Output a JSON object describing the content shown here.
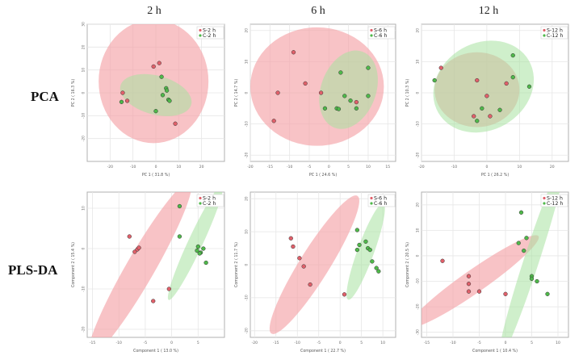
{
  "figure": {
    "col_titles": [
      "2 h",
      "6 h",
      "12 h"
    ],
    "row_labels": [
      "PCA",
      "PLS-DA"
    ]
  },
  "colors": {
    "s_ellipse": "#f4a3a8",
    "c_ellipse": "#a8e2a0",
    "s_point": "#e0606a",
    "c_point": "#4fb84a",
    "frame": "#b0b0b0",
    "grid": "#e6e6e6"
  },
  "chart_data": [
    {
      "type": "scatter",
      "method": "PCA",
      "time": "2 h",
      "xlabel": "PC 1 ( 31.8 %)",
      "ylabel": "PC 2 ( 16.3 %)",
      "xlim": [
        -30,
        30
      ],
      "ylim": [
        -30,
        30
      ],
      "xticks": [
        -20,
        -10,
        0,
        10,
        20
      ],
      "yticks": [
        -20,
        -10,
        0,
        10,
        20,
        30
      ],
      "legend": [
        "S-2 h",
        "C-2 h"
      ],
      "series": [
        {
          "name": "S-2 h",
          "points": [
            [
              -14.5,
              0
            ],
            [
              -12.5,
              -3.5
            ],
            [
              -1,
              11.5
            ],
            [
              1.5,
              13
            ],
            [
              8.5,
              -13.5
            ]
          ]
        },
        {
          "name": "C-2 h",
          "points": [
            [
              -15,
              -4
            ],
            [
              0,
              -8
            ],
            [
              2.5,
              7
            ],
            [
              3,
              -1
            ],
            [
              4.5,
              2
            ],
            [
              5.5,
              -3
            ],
            [
              6,
              -3.5
            ],
            [
              4.8,
              1
            ]
          ]
        }
      ],
      "ellipses": [
        {
          "series": "S-2 h",
          "cx": -1,
          "cy": 5,
          "rx": 24,
          "ry": 27,
          "angle": 0
        },
        {
          "series": "C-2 h",
          "cx": 0,
          "cy": -1,
          "rx": 16,
          "ry": 8.5,
          "angle": 15
        }
      ]
    },
    {
      "type": "scatter",
      "method": "PCA",
      "time": "6 h",
      "xlabel": "PC 1 ( 24.6 %)",
      "ylabel": "PC 2 ( 14.7 %)",
      "xlim": [
        -20,
        17
      ],
      "ylim": [
        -22,
        22
      ],
      "xticks": [
        -20,
        -15,
        -10,
        -5,
        0,
        5,
        10,
        15
      ],
      "yticks": [
        -20,
        -10,
        0,
        10,
        20
      ],
      "legend": [
        "S-6 h",
        "C-6 h"
      ],
      "series": [
        {
          "name": "S-6 h",
          "points": [
            [
              -14,
              -9
            ],
            [
              -13,
              0
            ],
            [
              -9,
              13
            ],
            [
              -6,
              3
            ],
            [
              -2,
              0
            ],
            [
              7,
              -3
            ]
          ]
        },
        {
          "name": "C-6 h",
          "points": [
            [
              -1,
              -5
            ],
            [
              2,
              -5
            ],
            [
              2.5,
              -5.2
            ],
            [
              4,
              -1
            ],
            [
              3,
              6.5
            ],
            [
              7,
              -5
            ],
            [
              10,
              -1
            ],
            [
              10,
              8
            ],
            [
              5.5,
              -2.5
            ]
          ]
        }
      ],
      "ellipses": [
        {
          "series": "S-6 h",
          "cx": -3,
          "cy": 2,
          "rx": 17,
          "ry": 19,
          "angle": 0
        },
        {
          "series": "C-6 h",
          "cx": 5,
          "cy": 1,
          "rx": 7,
          "ry": 13,
          "angle": 20
        }
      ]
    },
    {
      "type": "scatter",
      "method": "PCA",
      "time": "12 h",
      "xlabel": "PC 1 ( 26.2 %)",
      "ylabel": "PC 2 ( 10.3 %)",
      "xlim": [
        -20,
        25
      ],
      "ylim": [
        -22,
        22
      ],
      "xticks": [
        -20,
        -10,
        0,
        10,
        20
      ],
      "yticks": [
        -20,
        -10,
        0,
        10,
        20
      ],
      "legend": [
        "S-12 h",
        "C-12 h"
      ],
      "series": [
        {
          "name": "S-12 h",
          "points": [
            [
              -14,
              8
            ],
            [
              -3,
              4
            ],
            [
              -4,
              -7.5
            ],
            [
              1,
              -7.5
            ],
            [
              0,
              -1
            ],
            [
              6,
              3
            ]
          ]
        },
        {
          "name": "C-12 h",
          "points": [
            [
              -16,
              4
            ],
            [
              -3,
              -9
            ],
            [
              -1.5,
              -5
            ],
            [
              4,
              -5.5
            ],
            [
              8,
              5
            ],
            [
              8,
              12
            ],
            [
              13,
              2
            ]
          ]
        }
      ],
      "ellipses": [
        {
          "series": "S-12 h",
          "cx": -3,
          "cy": 1,
          "rx": 13,
          "ry": 12,
          "angle": 0
        },
        {
          "series": "C-12 h",
          "cx": -1,
          "cy": 2,
          "rx": 16,
          "ry": 14,
          "angle": -30
        }
      ]
    },
    {
      "type": "scatter",
      "method": "PLS-DA",
      "time": "2 h",
      "xlabel": "Component 1 ( 13.0 %)",
      "ylabel": "Component 2 ( 15.4 %)",
      "xlim": [
        -16,
        10
      ],
      "ylim": [
        -22,
        14
      ],
      "xticks": [
        -15,
        -10,
        -5,
        0,
        5
      ],
      "yticks": [
        -20,
        -10,
        0,
        10
      ],
      "legend": [
        "S-2 h",
        "C-2 h"
      ],
      "series": [
        {
          "name": "S-2 h",
          "points": [
            [
              -8,
              3
            ],
            [
              -7,
              -0.8
            ],
            [
              -6.5,
              -0.2
            ],
            [
              -6.2,
              0.2
            ],
            [
              -0.5,
              -10
            ],
            [
              -3.5,
              -13
            ]
          ]
        },
        {
          "name": "C-2 h",
          "points": [
            [
              1.5,
              10.5
            ],
            [
              1.5,
              3
            ],
            [
              4.8,
              -0.5
            ],
            [
              5,
              0.5
            ],
            [
              5.5,
              -1
            ],
            [
              6,
              0
            ],
            [
              6.5,
              -3.5
            ],
            [
              5.3,
              -1.2
            ]
          ]
        }
      ],
      "ellipses": [
        {
          "series": "S-2 h",
          "cx": -6,
          "cy": -5,
          "rx": 19,
          "ry": 3.5,
          "angle": -60
        },
        {
          "series": "C-2 h",
          "cx": 4.5,
          "cy": 1.5,
          "rx": 12,
          "ry": 1.8,
          "angle": -65
        }
      ]
    },
    {
      "type": "scatter",
      "method": "PLS-DA",
      "time": "6 h",
      "xlabel": "Component 1 ( 22.7 %)",
      "ylabel": "Component 2 ( 11.7 %)",
      "xlim": [
        -21,
        13
      ],
      "ylim": [
        -22,
        22
      ],
      "xticks": [
        -20,
        -15,
        -10,
        -5,
        0,
        5,
        10
      ],
      "yticks": [
        -20,
        -10,
        0,
        10,
        20
      ],
      "legend": [
        "S-6 h",
        "C-6 h"
      ],
      "series": [
        {
          "name": "S-6 h",
          "points": [
            [
              -11.5,
              8
            ],
            [
              -11,
              5.5
            ],
            [
              -9.5,
              2
            ],
            [
              -8.5,
              -0.5
            ],
            [
              -7,
              -6
            ],
            [
              1,
              -9
            ]
          ]
        },
        {
          "name": "C-6 h",
          "points": [
            [
              4,
              10.5
            ],
            [
              4.5,
              6
            ],
            [
              4,
              4.5
            ],
            [
              6,
              7
            ],
            [
              6.5,
              5
            ],
            [
              7,
              4.5
            ],
            [
              7.5,
              1
            ],
            [
              8.5,
              -1
            ],
            [
              9,
              -2
            ]
          ]
        }
      ],
      "ellipses": [
        {
          "series": "S-6 h",
          "cx": -6,
          "cy": 0,
          "rx": 19,
          "ry": 4.5,
          "angle": -58
        },
        {
          "series": "C-6 h",
          "cx": 6,
          "cy": 4,
          "rx": 12,
          "ry": 2.5,
          "angle": -70
        }
      ]
    },
    {
      "type": "scatter",
      "method": "PLS-DA",
      "time": "12 h",
      "xlabel": "Component 1 ( 10.4 %)",
      "ylabel": "Component 2 ( 20.5 %)",
      "xlim": [
        -16,
        12
      ],
      "ylim": [
        -32,
        25
      ],
      "xticks": [
        -15,
        -10,
        -5,
        0,
        5,
        10
      ],
      "yticks": [
        -30,
        -20,
        -10,
        0,
        10,
        20
      ],
      "legend": [
        "S-12 h",
        "C-12 h"
      ],
      "series": [
        {
          "name": "S-12 h",
          "points": [
            [
              -12,
              -2
            ],
            [
              -7,
              -8
            ],
            [
              -7,
              -11
            ],
            [
              -7,
              -14
            ],
            [
              -5,
              -14
            ],
            [
              0,
              -15
            ]
          ]
        },
        {
          "name": "C-12 h",
          "points": [
            [
              3,
              17
            ],
            [
              2.5,
              5
            ],
            [
              3.5,
              2
            ],
            [
              4,
              7
            ],
            [
              5,
              -8
            ],
            [
              5,
              -9
            ],
            [
              6,
              -10
            ],
            [
              8,
              -15
            ]
          ]
        }
      ],
      "ellipses": [
        {
          "series": "S-12 h",
          "cx": -6,
          "cy": -10,
          "rx": 15,
          "ry": 4.5,
          "angle": -35
        },
        {
          "series": "C-12 h",
          "cx": 5,
          "cy": -1.5,
          "rx": 20,
          "ry": 3,
          "angle": -72
        }
      ]
    }
  ]
}
